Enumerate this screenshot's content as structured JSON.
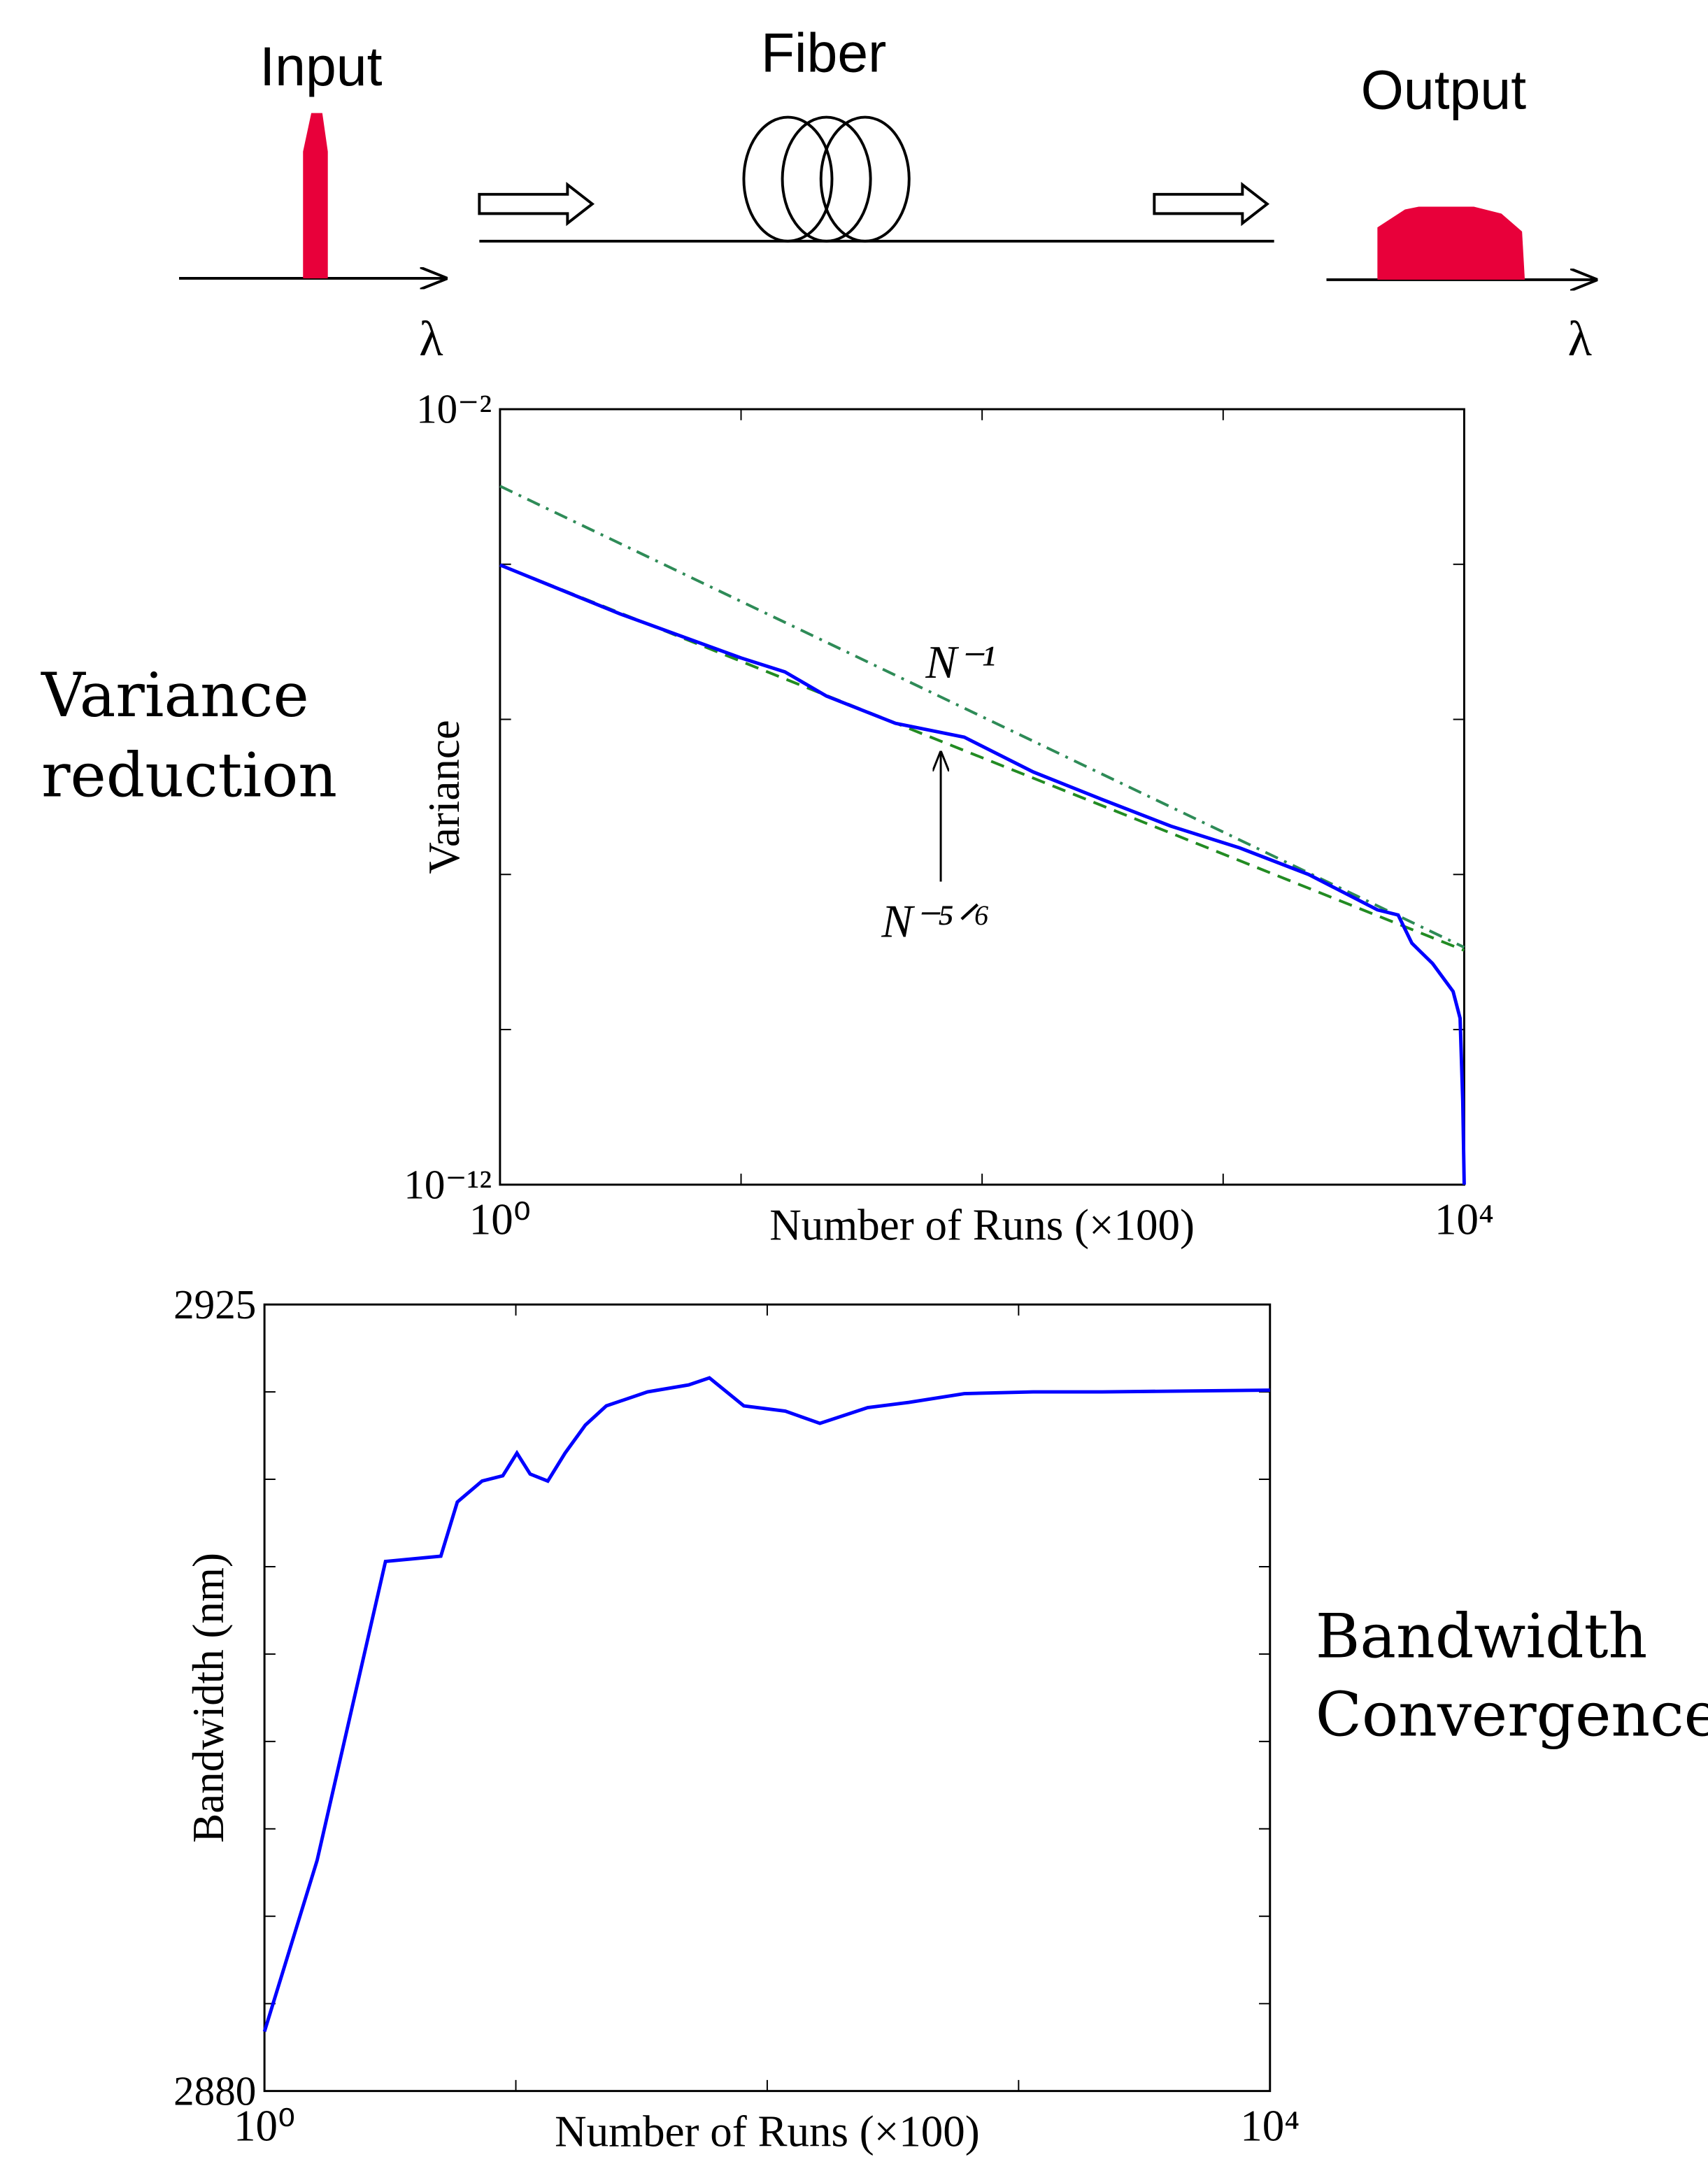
{
  "diagram": {
    "input": "Input",
    "fiber": "Fiber",
    "output": "Output",
    "axis_symbol": "λ"
  },
  "captions": [
    [
      "Variance",
      "reduction"
    ],
    [
      "Bandwidth",
      "Convergence"
    ]
  ],
  "chart_data": [
    {
      "type": "line",
      "xscale": "log",
      "yscale": "log",
      "xlabel": "Number of Runs (×100)",
      "ylabel": "Variance",
      "xlim": [
        1,
        10000
      ],
      "ylim": [
        1e-12,
        0.01
      ],
      "xticks": [
        {
          "value": 1,
          "label": "10⁰"
        },
        {
          "value": 10,
          "label": null
        },
        {
          "value": 100,
          "label": null
        },
        {
          "value": 1000,
          "label": null
        },
        {
          "value": 10000,
          "label": "10⁴"
        }
      ],
      "yticks": [
        {
          "value": 1e-12,
          "label": "10⁻¹²"
        },
        {
          "value": 1e-10,
          "label": null
        },
        {
          "value": 1e-08,
          "label": null
        },
        {
          "value": 1e-06,
          "label": null
        },
        {
          "value": 0.0001,
          "label": null
        },
        {
          "value": 0.01,
          "label": "10⁻²"
        }
      ],
      "annotations": [
        "N⁻¹",
        "N⁻⁵ᐟ⁶"
      ],
      "series": [
        {
          "color": "#2e8b57",
          "linestyle": "dashdot",
          "x": [
            1,
            10000
          ],
          "values": [
            0.00102,
            1.15e-09
          ]
        },
        {
          "color": "#228b22",
          "linestyle": "dashed",
          "x": [
            1,
            10000
          ],
          "values": [
            9.8e-05,
            1.05e-09
          ]
        },
        {
          "color": "#0000ff",
          "linestyle": "solid",
          "x": [
            1,
            3.14,
            10,
            15.2,
            22.6,
            43.7,
            84.3,
            163,
            314,
            607,
            1172,
            2262,
            4365,
            5321,
            6067,
            7396,
            8995,
            9616,
            9863,
            10000
          ],
          "values": [
            9.8e-05,
            2.3e-05,
            6.2e-06,
            4.1e-06,
            2e-06,
            8.9e-07,
            5.9e-07,
            2.1e-07,
            9.3e-08,
            4.2e-08,
            2.2e-08,
            1e-08,
            3.5e-09,
            3e-09,
            1.3e-09,
            7.1e-10,
            3.1e-10,
            1.4e-10,
            1.2e-11,
            1e-12
          ]
        }
      ]
    },
    {
      "type": "line",
      "xscale": "log",
      "yscale": "linear",
      "xlabel": "Number of Runs (×100)",
      "ylabel": "Bandwidth (nm)",
      "xlim": [
        1,
        10000
      ],
      "ylim": [
        2880,
        2925
      ],
      "xticks": [
        {
          "value": 1,
          "label": "10⁰"
        },
        {
          "value": 10,
          "label": null
        },
        {
          "value": 100,
          "label": null
        },
        {
          "value": 1000,
          "label": null
        },
        {
          "value": 10000,
          "label": "10⁴"
        }
      ],
      "yticks": [
        {
          "value": 2880,
          "label": "2880"
        },
        {
          "value": 2885,
          "label": null
        },
        {
          "value": 2890,
          "label": null
        },
        {
          "value": 2895,
          "label": null
        },
        {
          "value": 2900,
          "label": null
        },
        {
          "value": 2905,
          "label": null
        },
        {
          "value": 2910,
          "label": null
        },
        {
          "value": 2915,
          "label": null
        },
        {
          "value": 2920,
          "label": null
        },
        {
          "value": 2925,
          "label": "2925"
        }
      ],
      "series": [
        {
          "color": "#0000ff",
          "linestyle": "solid",
          "x": [
            1,
            1.62,
            3.03,
            5.03,
            5.85,
            7.34,
            8.87,
            10.1,
            11.4,
            13.4,
            15.7,
            18.9,
            22.9,
            33.4,
            48.7,
            58.9,
            80.7,
            118,
            162,
            251,
            366,
            608,
            1142,
            2146,
            10000
          ],
          "values": [
            2883.4,
            2893.2,
            2910.3,
            2910.6,
            2913.7,
            2914.9,
            2915.2,
            2916.5,
            2915.3,
            2914.9,
            2916.5,
            2918.1,
            2919.2,
            2920.0,
            2920.4,
            2920.8,
            2919.2,
            2918.9,
            2918.2,
            2919.1,
            2919.4,
            2919.9,
            2920.0,
            2920.0,
            2920.1
          ]
        }
      ]
    }
  ]
}
